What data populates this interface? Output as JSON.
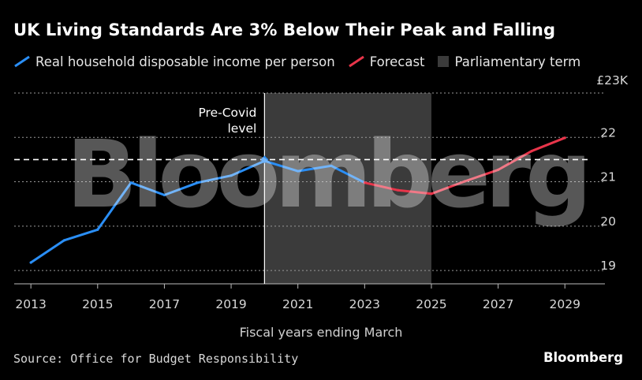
{
  "title": "UK Living Standards Are 3% Below Their Peak and Falling",
  "legend": {
    "actual": "Real household disposable income per person",
    "forecast": "Forecast",
    "term": "Parliamentary term"
  },
  "unit_label": "£23K",
  "xlabel": "Fiscal years ending March",
  "source": "Source: Office for Budget Responsibility",
  "brand": "Bloomberg",
  "watermark": "Bloomberg",
  "annotation": [
    "Pre-Covid",
    "level"
  ],
  "colors": {
    "actual": "#2a8ef5",
    "forecast": "#e8354a",
    "term": "#3b3b3b",
    "grid": "#9a9a9a"
  },
  "chart_data": {
    "type": "line",
    "xlim": [
      2012.5,
      2030.2
    ],
    "ylim": [
      18.7,
      23
    ],
    "x_ticks": [
      2013,
      2015,
      2017,
      2019,
      2021,
      2023,
      2025,
      2027,
      2029
    ],
    "y_ticks": [
      19,
      20,
      21,
      22
    ],
    "y_tick_labels": [
      "19",
      "20",
      "21",
      "22"
    ],
    "series": [
      {
        "name": "Real household disposable income per person",
        "x": [
          2013,
          2014,
          2015,
          2016,
          2017,
          2018,
          2019,
          2020,
          2021,
          2022,
          2023
        ],
        "y": [
          19.18,
          19.68,
          19.92,
          20.98,
          20.7,
          20.98,
          21.14,
          21.47,
          21.24,
          21.36,
          20.98
        ]
      },
      {
        "name": "Forecast",
        "x": [
          2023,
          2024,
          2025,
          2026,
          2027,
          2028,
          2029
        ],
        "y": [
          20.98,
          20.81,
          20.73,
          21.01,
          21.27,
          21.69,
          21.99
        ]
      }
    ],
    "reference_line": {
      "y": 21.5,
      "label": "Pre-Covid level"
    },
    "shaded_range": {
      "x": [
        2020,
        2025
      ],
      "label": "Parliamentary term"
    }
  }
}
